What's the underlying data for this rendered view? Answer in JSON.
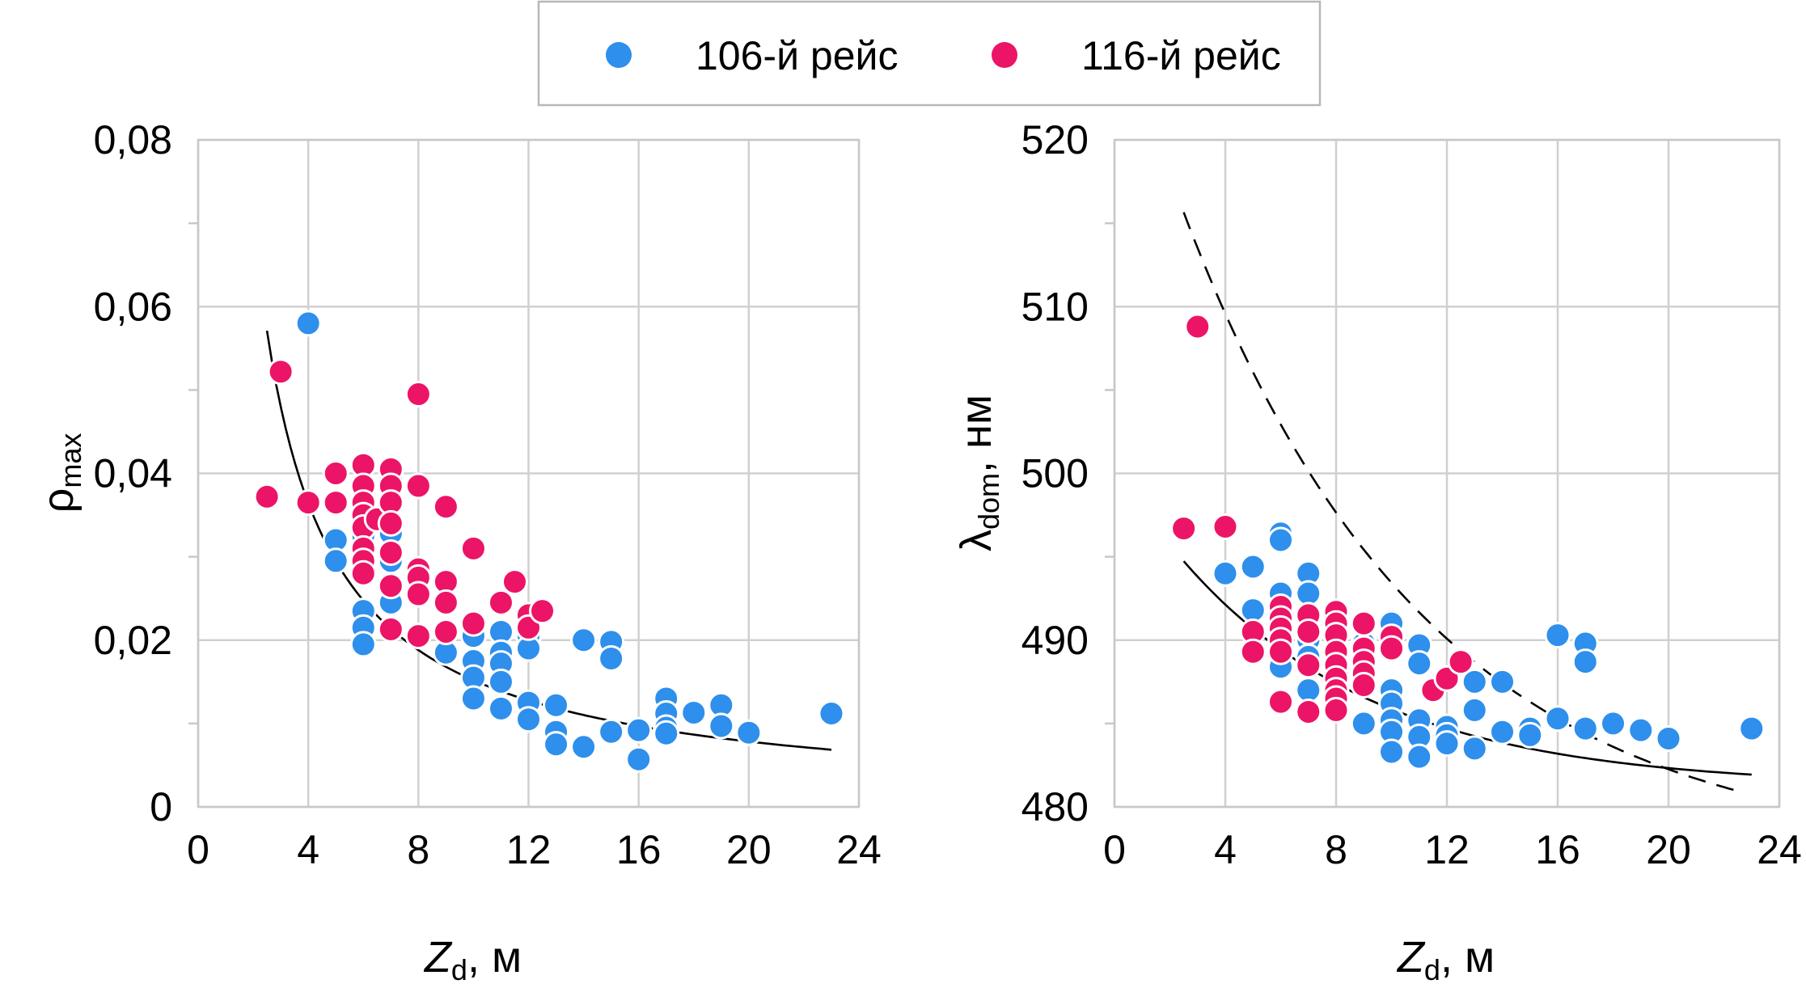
{
  "legend": {
    "series": [
      {
        "name": "106-й рейс",
        "color": "#2e8fec"
      },
      {
        "name": "116-й рейс",
        "color": "#ec1466"
      }
    ]
  },
  "chart_data": [
    {
      "type": "scatter",
      "xlabel": {
        "main": "Z",
        "sub": "d",
        "rest": ", м"
      },
      "ylabel": {
        "main": "ρ",
        "sub": "max",
        "rest": ""
      },
      "xlim": [
        0,
        24
      ],
      "ylim": [
        0,
        0.08
      ],
      "xticks": [
        0,
        4,
        8,
        12,
        16,
        20,
        24
      ],
      "xtick_labels": [
        "0",
        "4",
        "8",
        "12",
        "16",
        "20",
        "24"
      ],
      "yticks": [
        0,
        0.02,
        0.04,
        0.06,
        0.08
      ],
      "ytick_labels": [
        "0",
        "0,02",
        "0,04",
        "0,06",
        "0,08"
      ],
      "grid": true,
      "series": [
        {
          "name": "106-й рейс",
          "color": "#2e8fec",
          "points": [
            [
              4,
              0.058
            ],
            [
              5,
              0.032
            ],
            [
              5,
              0.0295
            ],
            [
              6,
              0.0325
            ],
            [
              6,
              0.0235
            ],
            [
              6,
              0.0215
            ],
            [
              6,
              0.0195
            ],
            [
              7,
              0.0395
            ],
            [
              7,
              0.038
            ],
            [
              7,
              0.0328
            ],
            [
              7,
              0.0295
            ],
            [
              7,
              0.0245
            ],
            [
              9,
              0.0185
            ],
            [
              9,
              0.021
            ],
            [
              10,
              0.0215
            ],
            [
              10,
              0.0205
            ],
            [
              10,
              0.0175
            ],
            [
              10,
              0.0155
            ],
            [
              10,
              0.013
            ],
            [
              11,
              0.021
            ],
            [
              11,
              0.0185
            ],
            [
              11,
              0.0172
            ],
            [
              11,
              0.015
            ],
            [
              11,
              0.0118
            ],
            [
              12,
              0.0205
            ],
            [
              12,
              0.019
            ],
            [
              12,
              0.0125
            ],
            [
              12,
              0.0105
            ],
            [
              13,
              0.0122
            ],
            [
              13,
              0.009
            ],
            [
              13,
              0.0075
            ],
            [
              14,
              0.02
            ],
            [
              14,
              0.0072
            ],
            [
              15,
              0.0198
            ],
            [
              15,
              0.0178
            ],
            [
              15,
              0.009
            ],
            [
              16,
              0.0092
            ],
            [
              16,
              0.0057
            ],
            [
              17,
              0.013
            ],
            [
              17,
              0.0112
            ],
            [
              17,
              0.0095
            ],
            [
              17,
              0.0088
            ],
            [
              18,
              0.0113
            ],
            [
              19,
              0.0122
            ],
            [
              19,
              0.0097
            ],
            [
              20,
              0.0089
            ],
            [
              23,
              0.0112
            ]
          ]
        },
        {
          "name": "116-й рейс",
          "color": "#ec1466",
          "points": [
            [
              2.5,
              0.0372
            ],
            [
              3,
              0.0522
            ],
            [
              4,
              0.0365
            ],
            [
              5,
              0.04
            ],
            [
              5,
              0.0365
            ],
            [
              6,
              0.041
            ],
            [
              6,
              0.0385
            ],
            [
              6,
              0.0365
            ],
            [
              6,
              0.035
            ],
            [
              6,
              0.0335
            ],
            [
              6,
              0.031
            ],
            [
              6,
              0.0295
            ],
            [
              6,
              0.028
            ],
            [
              6.5,
              0.0345
            ],
            [
              7,
              0.0405
            ],
            [
              7,
              0.0385
            ],
            [
              7,
              0.0365
            ],
            [
              7,
              0.034
            ],
            [
              7,
              0.0305
            ],
            [
              7,
              0.0265
            ],
            [
              7,
              0.0213
            ],
            [
              8,
              0.0495
            ],
            [
              8,
              0.0385
            ],
            [
              8,
              0.0285
            ],
            [
              8,
              0.0275
            ],
            [
              8,
              0.0255
            ],
            [
              8,
              0.0205
            ],
            [
              9,
              0.036
            ],
            [
              9,
              0.027
            ],
            [
              9,
              0.0245
            ],
            [
              9,
              0.021
            ],
            [
              10,
              0.031
            ],
            [
              10,
              0.022
            ],
            [
              11,
              0.0245
            ],
            [
              11.5,
              0.027
            ],
            [
              12,
              0.023
            ],
            [
              12,
              0.0215
            ],
            [
              12.5,
              0.0235
            ]
          ]
        }
      ],
      "trend": {
        "style": "solid",
        "color": "#000000",
        "formula": "power",
        "a": 0.137,
        "b": -0.955,
        "x_range": [
          2.5,
          23
        ]
      }
    },
    {
      "type": "scatter",
      "xlabel": {
        "main": "Z",
        "sub": "d",
        "rest": ", м"
      },
      "ylabel": {
        "main": "λ",
        "sub": "dom",
        "rest": ", нм"
      },
      "xlim": [
        0,
        24
      ],
      "ylim": [
        480,
        520
      ],
      "xticks": [
        0,
        4,
        8,
        12,
        16,
        20,
        24
      ],
      "xtick_labels": [
        "0",
        "4",
        "8",
        "12",
        "16",
        "20",
        "24"
      ],
      "yticks": [
        480,
        490,
        500,
        510,
        520
      ],
      "ytick_labels": [
        "480",
        "490",
        "500",
        "510",
        "520"
      ],
      "grid": true,
      "series": [
        {
          "name": "106-й рейс",
          "color": "#2e8fec",
          "points": [
            [
              4,
              494
            ],
            [
              5,
              494.4
            ],
            [
              5,
              491.8
            ],
            [
              6,
              496.4
            ],
            [
              6,
              496
            ],
            [
              6,
              492.8
            ],
            [
              6,
              491
            ],
            [
              6,
              490
            ],
            [
              6,
              488.4
            ],
            [
              7,
              494
            ],
            [
              7,
              492.8
            ],
            [
              7,
              490
            ],
            [
              7,
              489
            ],
            [
              7,
              487
            ],
            [
              9,
              489.8
            ],
            [
              9,
              485
            ],
            [
              10,
              491
            ],
            [
              10,
              487
            ],
            [
              10,
              486.2
            ],
            [
              10,
              485.2
            ],
            [
              10,
              484.5
            ],
            [
              10,
              483.3
            ],
            [
              11,
              489.7
            ],
            [
              11,
              488.6
            ],
            [
              11,
              485.2
            ],
            [
              11,
              484.2
            ],
            [
              11,
              483
            ],
            [
              12,
              484.8
            ],
            [
              12,
              484.3
            ],
            [
              12,
              483.8
            ],
            [
              13,
              487.5
            ],
            [
              13,
              485.8
            ],
            [
              13,
              483.5
            ],
            [
              14,
              487.5
            ],
            [
              14,
              484.5
            ],
            [
              15,
              484.7
            ],
            [
              15,
              484.3
            ],
            [
              16,
              490.3
            ],
            [
              16,
              485.3
            ],
            [
              17,
              489.8
            ],
            [
              17,
              488.7
            ],
            [
              17,
              484.7
            ],
            [
              18,
              485
            ],
            [
              19,
              484.6
            ],
            [
              20,
              484.1
            ],
            [
              23,
              484.7
            ]
          ]
        },
        {
          "name": "116-й рейс",
          "color": "#ec1466",
          "points": [
            [
              2.5,
              496.7
            ],
            [
              3,
              508.8
            ],
            [
              4,
              496.8
            ],
            [
              5,
              490.5
            ],
            [
              5,
              489.3
            ],
            [
              6,
              492
            ],
            [
              6,
              491.3
            ],
            [
              6,
              490.7
            ],
            [
              6,
              490
            ],
            [
              6,
              489.3
            ],
            [
              6,
              486.3
            ],
            [
              7,
              491.5
            ],
            [
              7,
              490.5
            ],
            [
              7,
              488.5
            ],
            [
              7,
              485.7
            ],
            [
              8,
              491.7
            ],
            [
              8,
              491
            ],
            [
              8,
              490.3
            ],
            [
              8,
              489.3
            ],
            [
              8,
              488.5
            ],
            [
              8,
              487.7
            ],
            [
              8,
              487
            ],
            [
              8,
              486.5
            ],
            [
              8,
              485.8
            ],
            [
              9,
              491
            ],
            [
              9,
              489.5
            ],
            [
              9,
              488.7
            ],
            [
              9,
              488
            ],
            [
              9,
              487.3
            ],
            [
              10,
              490.2
            ],
            [
              10,
              489.5
            ],
            [
              11.5,
              487
            ],
            [
              12,
              487.7
            ],
            [
              12.5,
              488.7
            ]
          ]
        }
      ],
      "trend": {
        "style": "solid",
        "color": "#000000",
        "formula": "exp_decay",
        "c": 481.2,
        "a": 19.3,
        "k": 0.142,
        "x_range": [
          2.5,
          23
        ]
      },
      "trend2": {
        "style": "dashed",
        "color": "#000000",
        "formula": "exp_decay",
        "c": 477,
        "a": 51.4,
        "k": 0.114,
        "x_range": [
          2.5,
          22.5
        ]
      }
    }
  ]
}
